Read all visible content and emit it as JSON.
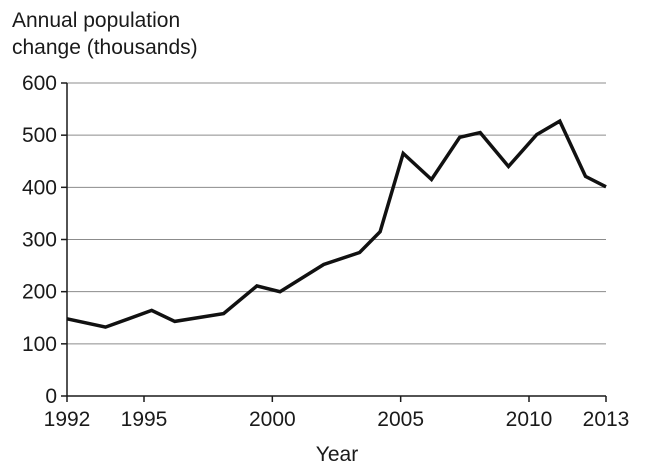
{
  "chart_data": {
    "type": "line",
    "ylabel_lines": [
      "Annual population",
      "change (thousands)"
    ],
    "xlabel": "Year",
    "xlim": [
      1992,
      2013
    ],
    "ylim": [
      0,
      600
    ],
    "x_ticks": [
      1992,
      1995,
      2000,
      2005,
      2010,
      2013
    ],
    "y_ticks": [
      0,
      100,
      200,
      300,
      400,
      500,
      600
    ],
    "grid": "horizontal",
    "series": [
      {
        "x": [
          1992,
          1993.5,
          1995.3,
          1996.2,
          1998.1,
          1999.4,
          2000.3,
          2002,
          2003.4,
          2004.2,
          2005.1,
          2006.2,
          2007.3,
          2008.1,
          2009.2,
          2010.3,
          2011.2,
          2012.2,
          2013
        ],
        "values": [
          148,
          132,
          164,
          143,
          158,
          211,
          200,
          252,
          275,
          315,
          465,
          415,
          496,
          505,
          440,
          501,
          527,
          421,
          401
        ]
      }
    ]
  }
}
